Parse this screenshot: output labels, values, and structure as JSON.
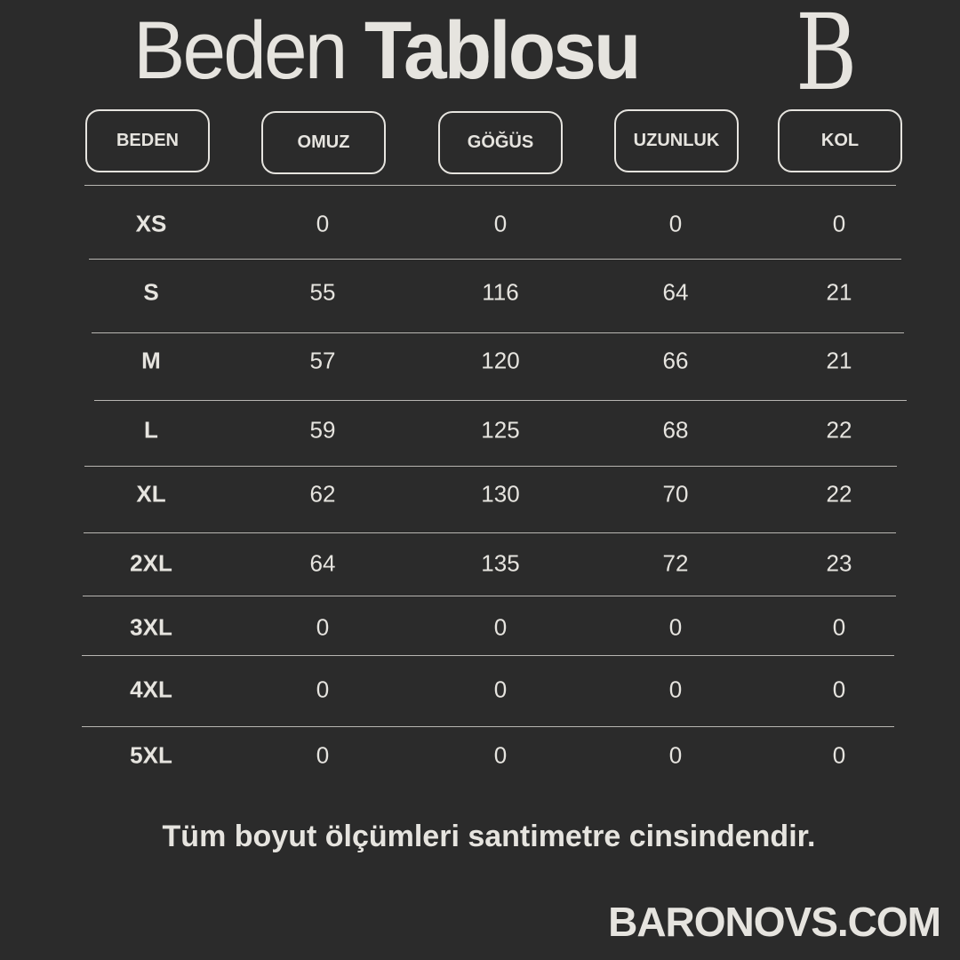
{
  "title": {
    "light": "Beden",
    "bold": "Tablosu"
  },
  "logo_letter": "B",
  "colors": {
    "background": "#2b2b2b",
    "text": "#e6e4df"
  },
  "headers": [
    "BEDEN",
    "OMUZ",
    "GÖĞÜS",
    "UZUNLUK",
    "KOL"
  ],
  "rows": [
    [
      "XS",
      "0",
      "0",
      "0",
      "0"
    ],
    [
      "S",
      "55",
      "116",
      "64",
      "21"
    ],
    [
      "M",
      "57",
      "120",
      "66",
      "21"
    ],
    [
      "L",
      "59",
      "125",
      "68",
      "22"
    ],
    [
      "XL",
      "62",
      "130",
      "70",
      "22"
    ],
    [
      "2XL",
      "64",
      "135",
      "72",
      "23"
    ],
    [
      "3XL",
      "0",
      "0",
      "0",
      "0"
    ],
    [
      "4XL",
      "0",
      "0",
      "0",
      "0"
    ],
    [
      "5XL",
      "0",
      "0",
      "0",
      "0"
    ]
  ],
  "note": "Tüm boyut ölçümleri santimetre cinsindendir.",
  "website": "BARONOVS.COM"
}
